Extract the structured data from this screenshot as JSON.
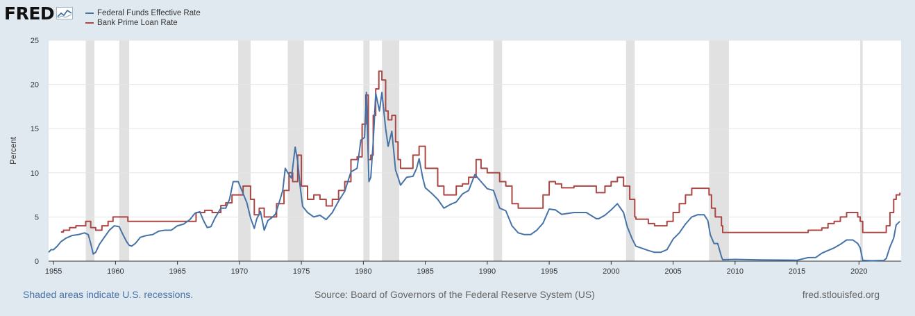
{
  "header": {
    "logo_text": "FRED",
    "logo_icon": "graph-icon"
  },
  "footer": {
    "recession_note": "Shaded areas indicate U.S. recessions.",
    "source": "Source: Board of Governors of the Federal Reserve System (US)",
    "site": "fred.stlouisfed.org"
  },
  "chart_data": {
    "type": "line",
    "title": "",
    "xlabel": "",
    "ylabel": "Percent",
    "xlim": [
      1954.6,
      2023.4
    ],
    "ylim": [
      0,
      25
    ],
    "x_ticks": [
      1955,
      1960,
      1965,
      1970,
      1975,
      1980,
      1985,
      1990,
      1995,
      2000,
      2005,
      2010,
      2015,
      2020
    ],
    "x_tick_labels": [
      "1955",
      "1960",
      "1965",
      "1970",
      "1975",
      "1980",
      "1985",
      "1990",
      "1995",
      "2000",
      "2005",
      "2010",
      "2015",
      "2020"
    ],
    "y_ticks": [
      0,
      5,
      10,
      15,
      20,
      25
    ],
    "y_tick_labels": [
      "0",
      "5",
      "10",
      "15",
      "20",
      "25"
    ],
    "grid": "horizontal",
    "legend_position": "top-left",
    "recessions": [
      [
        1957.6,
        1958.3
      ],
      [
        1960.3,
        1961.1
      ],
      [
        1969.9,
        1970.9
      ],
      [
        1973.9,
        1975.2
      ],
      [
        1980.0,
        1980.5
      ],
      [
        1981.5,
        1982.9
      ],
      [
        1990.5,
        1991.2
      ],
      [
        2001.2,
        2001.9
      ],
      [
        2007.9,
        2009.5
      ],
      [
        2020.1,
        2020.3
      ]
    ],
    "series": [
      {
        "name": "Federal Funds Effective Rate",
        "color": "#4572a7",
        "x": [
          1954.6,
          1954.8,
          1955.0,
          1955.3,
          1955.6,
          1956.0,
          1956.5,
          1957.0,
          1957.5,
          1957.8,
          1958.0,
          1958.2,
          1958.4,
          1958.7,
          1959.0,
          1959.5,
          1959.9,
          1960.3,
          1960.6,
          1960.9,
          1961.1,
          1961.3,
          1961.6,
          1962.0,
          1962.5,
          1963.0,
          1963.5,
          1964.0,
          1964.5,
          1965.0,
          1965.5,
          1966.0,
          1966.4,
          1966.8,
          1967.1,
          1967.4,
          1967.7,
          1968.0,
          1968.5,
          1968.9,
          1969.2,
          1969.5,
          1969.9,
          1970.2,
          1970.6,
          1970.9,
          1971.2,
          1971.4,
          1971.7,
          1972.0,
          1972.3,
          1972.6,
          1972.9,
          1973.2,
          1973.5,
          1973.7,
          1973.9,
          1974.2,
          1974.5,
          1974.7,
          1974.9,
          1975.1,
          1975.5,
          1976.0,
          1976.5,
          1977.0,
          1977.5,
          1978.0,
          1978.5,
          1979.0,
          1979.5,
          1979.8,
          1980.1,
          1980.25,
          1980.45,
          1980.6,
          1980.8,
          1981.0,
          1981.3,
          1981.5,
          1981.8,
          1982.0,
          1982.3,
          1982.6,
          1982.8,
          1983.0,
          1983.5,
          1984.0,
          1984.3,
          1984.5,
          1984.8,
          1985.0,
          1985.5,
          1986.0,
          1986.5,
          1987.0,
          1987.5,
          1988.0,
          1988.5,
          1989.0,
          1989.5,
          1990.0,
          1990.5,
          1991.0,
          1991.5,
          1992.0,
          1992.5,
          1993.0,
          1993.5,
          1994.0,
          1994.5,
          1995.0,
          1995.5,
          1996.0,
          1997.0,
          1998.0,
          1998.8,
          1999.0,
          1999.5,
          2000.0,
          2000.5,
          2001.0,
          2001.3,
          2001.7,
          2002.0,
          2003.0,
          2003.5,
          2004.0,
          2004.5,
          2005.0,
          2005.5,
          2006.0,
          2006.5,
          2007.0,
          2007.5,
          2007.8,
          2008.0,
          2008.3,
          2008.6,
          2008.9,
          2009.0,
          2010.0,
          2012.0,
          2015.0,
          2015.9,
          2016.5,
          2017.0,
          2017.5,
          2018.0,
          2018.5,
          2019.0,
          2019.5,
          2019.9,
          2020.1,
          2020.3,
          2021.0,
          2022.0,
          2022.2,
          2022.5,
          2022.8,
          2023.0,
          2023.3
        ],
        "values": [
          1.0,
          1.3,
          1.3,
          1.7,
          2.2,
          2.6,
          2.9,
          3.0,
          3.2,
          3.0,
          2.0,
          0.8,
          1.0,
          1.9,
          2.5,
          3.5,
          4.0,
          3.9,
          3.0,
          2.2,
          1.8,
          1.7,
          2.0,
          2.7,
          2.9,
          3.0,
          3.4,
          3.5,
          3.5,
          4.0,
          4.2,
          4.7,
          5.4,
          5.6,
          4.6,
          3.8,
          3.9,
          4.8,
          6.0,
          6.0,
          7.0,
          9.0,
          9.0,
          8.0,
          6.6,
          4.9,
          3.7,
          4.8,
          5.6,
          3.5,
          4.6,
          4.9,
          5.3,
          6.6,
          8.0,
          10.5,
          10.0,
          9.4,
          12.9,
          11.3,
          8.5,
          6.2,
          5.5,
          5.0,
          5.2,
          4.7,
          5.5,
          6.8,
          7.9,
          10.1,
          10.5,
          13.7,
          14.0,
          19.1,
          9.0,
          9.5,
          13.5,
          19.0,
          17.0,
          19.1,
          15.0,
          13.0,
          14.7,
          10.3,
          9.5,
          8.6,
          9.5,
          9.6,
          10.5,
          11.6,
          9.4,
          8.3,
          7.7,
          7.0,
          6.0,
          6.4,
          6.7,
          7.6,
          8.0,
          9.8,
          9.0,
          8.2,
          8.0,
          6.0,
          5.7,
          4.0,
          3.2,
          3.0,
          3.0,
          3.5,
          4.3,
          5.9,
          5.8,
          5.3,
          5.5,
          5.5,
          4.8,
          4.8,
          5.2,
          5.8,
          6.5,
          5.5,
          3.9,
          2.5,
          1.7,
          1.2,
          1.0,
          1.0,
          1.3,
          2.5,
          3.2,
          4.2,
          5.0,
          5.26,
          5.25,
          4.6,
          3.0,
          2.0,
          2.0,
          0.5,
          0.16,
          0.2,
          0.14,
          0.1,
          0.4,
          0.4,
          0.9,
          1.2,
          1.5,
          1.9,
          2.4,
          2.4,
          2.0,
          1.5,
          0.1,
          0.05,
          0.08,
          0.3,
          1.6,
          2.6,
          4.1,
          4.5
        ]
      },
      {
        "name": "Bank Prime Loan Rate",
        "color": "#aa4643",
        "x": [
          1955.6,
          1955.8,
          1956.3,
          1956.8,
          1957.6,
          1958.0,
          1958.4,
          1958.9,
          1959.4,
          1959.8,
          1960.6,
          1961.0,
          1965.9,
          1966.5,
          1967.2,
          1967.8,
          1968.5,
          1968.9,
          1969.4,
          1970.3,
          1970.9,
          1971.2,
          1971.6,
          1972.0,
          1973.0,
          1973.6,
          1974.0,
          1974.3,
          1974.7,
          1975.0,
          1975.5,
          1976.0,
          1976.5,
          1977.0,
          1977.5,
          1978.0,
          1978.5,
          1979.0,
          1979.5,
          1979.9,
          1980.2,
          1980.4,
          1980.6,
          1980.8,
          1981.0,
          1981.25,
          1981.5,
          1981.8,
          1982.0,
          1982.3,
          1982.6,
          1982.8,
          1983.0,
          1984.0,
          1984.5,
          1985.0,
          1986.0,
          1986.5,
          1987.0,
          1987.5,
          1988.0,
          1988.5,
          1989.1,
          1989.5,
          1990.0,
          1991.0,
          1991.5,
          1992.0,
          1992.5,
          1993.0,
          1994.0,
          1994.5,
          1995.0,
          1995.5,
          1996.0,
          1997.0,
          1998.0,
          1998.8,
          1999.0,
          1999.5,
          2000.0,
          2000.5,
          2001.0,
          2001.5,
          2001.9,
          2002.0,
          2003.0,
          2003.5,
          2004.0,
          2004.5,
          2005.0,
          2005.5,
          2006.0,
          2006.5,
          2007.0,
          2007.5,
          2007.9,
          2008.1,
          2008.4,
          2008.7,
          2008.9,
          2009.0,
          2010.0,
          2012.0,
          2015.0,
          2015.9,
          2016.5,
          2017.0,
          2017.5,
          2018.0,
          2018.5,
          2019.0,
          2019.5,
          2019.9,
          2020.1,
          2020.3,
          2021.0,
          2022.0,
          2022.2,
          2022.5,
          2022.8,
          2023.0,
          2023.3
        ],
        "values": [
          3.3,
          3.5,
          3.8,
          4.0,
          4.5,
          3.8,
          3.5,
          4.0,
          4.5,
          5.0,
          5.0,
          4.5,
          4.5,
          5.5,
          5.75,
          5.5,
          6.3,
          6.6,
          7.5,
          8.5,
          7.0,
          5.25,
          6.0,
          5.0,
          6.5,
          8.0,
          10.0,
          9.0,
          12.0,
          8.5,
          7.0,
          7.5,
          7.0,
          6.25,
          7.0,
          8.0,
          9.0,
          11.5,
          11.8,
          15.5,
          18.8,
          11.5,
          12.0,
          16.5,
          19.5,
          21.5,
          20.5,
          17.0,
          16.0,
          16.5,
          13.5,
          11.5,
          10.5,
          12.0,
          13.0,
          10.5,
          8.5,
          7.5,
          7.5,
          8.5,
          8.75,
          9.5,
          11.5,
          10.5,
          10.0,
          9.0,
          8.5,
          6.5,
          6.0,
          6.0,
          6.0,
          7.5,
          9.0,
          8.75,
          8.3,
          8.5,
          8.5,
          7.75,
          7.75,
          8.5,
          9.0,
          9.5,
          8.5,
          7.0,
          5.0,
          4.75,
          4.25,
          4.0,
          4.0,
          4.5,
          5.5,
          6.5,
          7.5,
          8.25,
          8.25,
          8.25,
          7.5,
          6.0,
          5.0,
          5.0,
          4.0,
          3.25,
          3.25,
          3.25,
          3.25,
          3.5,
          3.5,
          3.75,
          4.25,
          4.5,
          5.0,
          5.5,
          5.5,
          5.0,
          4.5,
          3.25,
          3.25,
          3.25,
          4.0,
          5.5,
          7.0,
          7.5,
          7.75
        ]
      }
    ]
  }
}
